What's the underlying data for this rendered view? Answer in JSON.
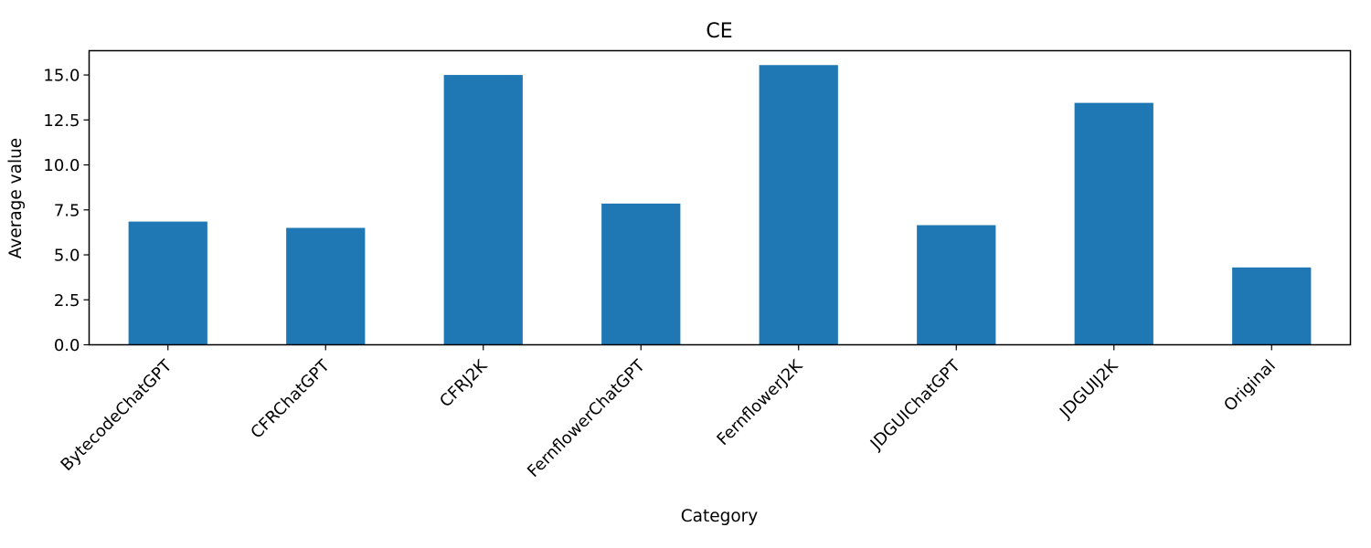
{
  "chart_data": {
    "type": "bar",
    "title": "CE",
    "xlabel": "Category",
    "ylabel": "Average value",
    "categories": [
      "BytecodeChatGPT",
      "CFRChatGPT",
      "CFRJ2K",
      "FernflowerChatGPT",
      "FernflowerJ2K",
      "JDGUIChatGPT",
      "JDGUIJ2K",
      "Original"
    ],
    "values": [
      6.85,
      6.5,
      15.0,
      7.85,
      15.55,
      6.65,
      13.45,
      4.3
    ],
    "yticks": [
      "0.0",
      "2.5",
      "5.0",
      "7.5",
      "10.0",
      "12.5",
      "15.0"
    ],
    "ylim": [
      0,
      16.35
    ],
    "bar_color": "#1f77b4",
    "grid": false,
    "legend": "none"
  }
}
